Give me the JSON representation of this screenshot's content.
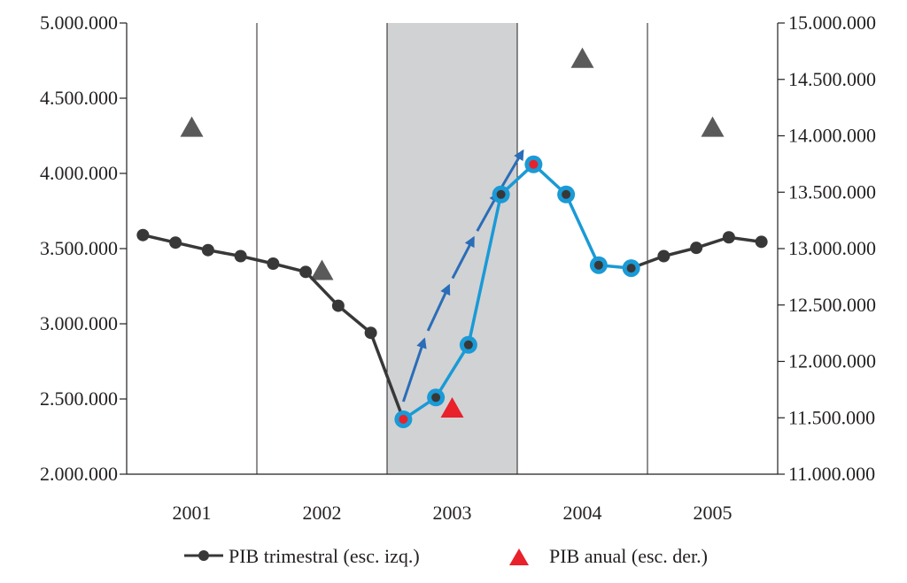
{
  "chart_data": {
    "type": "line",
    "title": "",
    "x": {
      "categories": [
        "2001",
        "2002",
        "2003",
        "2004",
        "2005"
      ]
    },
    "y_left": {
      "ylim": [
        2000000,
        5000000
      ],
      "ticks": [
        "2.000.000",
        "2.500.000",
        "3.000.000",
        "3.500.000",
        "4.000.000",
        "4.500.000",
        "5.000.000"
      ]
    },
    "y_right": {
      "ylim": [
        11000000,
        15000000
      ],
      "ticks": [
        "11.000.000",
        "11.500.000",
        "12.000.000",
        "12.500.000",
        "13.000.000",
        "13.500.000",
        "14.000.000",
        "14.500.000",
        "15.000.000"
      ]
    },
    "series": [
      {
        "name": "PIB trimestral (esc. izq.)",
        "axis": "left",
        "values": [
          3590000,
          3540000,
          3490000,
          3450000,
          3400000,
          3345000,
          3120000,
          2940000,
          2365000,
          2510000,
          2860000,
          3860000,
          4060000,
          3860000,
          3390000,
          3370000,
          3450000,
          3505000,
          3575000,
          3545000
        ],
        "highlight_range": [
          8,
          15
        ],
        "highlight_color": "#1a9ad6",
        "color": "#383838",
        "red_points": [
          8,
          12
        ]
      },
      {
        "name": "PIB anual (esc. der.)",
        "axis": "right",
        "values": [
          14070000,
          12800000,
          11580000,
          14680000,
          14070000
        ],
        "highlight_index": 2,
        "highlight_color": "#e8212b",
        "color": "#5a5a5a"
      }
    ],
    "shaded_year": "2003",
    "shade_color": "#d1d2d4",
    "arrow_color": "#2a6db8",
    "grid": false,
    "legend": "bottom-center"
  }
}
